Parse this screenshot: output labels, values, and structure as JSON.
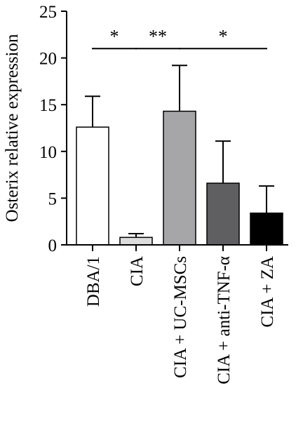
{
  "chart_data": {
    "type": "bar",
    "ylabel": "Osterix relative expression",
    "xlabel": "",
    "ylim": [
      0,
      25
    ],
    "yticks": [
      0,
      5,
      10,
      15,
      20,
      25
    ],
    "categories": [
      "DBA/1",
      "CIA",
      "CIA + UC-MSCs",
      "CIA + anti-TNF-α",
      "CIA + ZA"
    ],
    "values": [
      12.6,
      0.8,
      14.3,
      6.6,
      3.4
    ],
    "errors": [
      3.3,
      0.4,
      4.9,
      4.5,
      2.9
    ],
    "bar_colors": [
      "#ffffff",
      "#dcdcdc",
      "#a6a6a8",
      "#5f5f61",
      "#000000"
    ],
    "significance": [
      {
        "from": 0,
        "to": 1,
        "label": "*",
        "y": 21
      },
      {
        "from": 1,
        "to": 2,
        "label": "**",
        "y": 21
      },
      {
        "from": 2,
        "to": 4,
        "label": "*",
        "y": 21
      }
    ],
    "grid": false,
    "legend": "none"
  }
}
